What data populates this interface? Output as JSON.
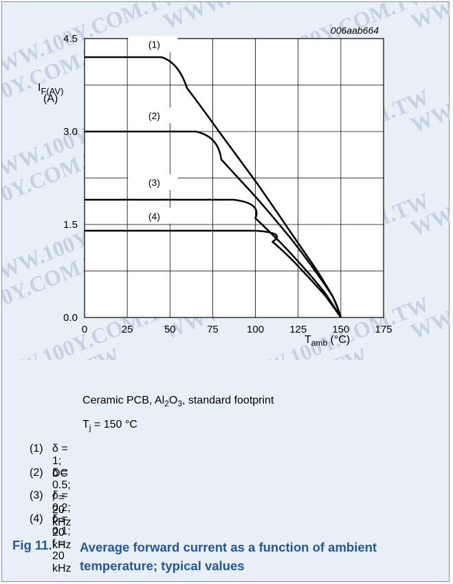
{
  "chart_data": {
    "type": "line",
    "diagram_id": "006aab664",
    "xlabel": "T",
    "xlabel_sub": "amb",
    "xlabel_unit": " (°C)",
    "ylabel_main": "I",
    "ylabel_sub": "F(AV)",
    "ylabel_unit": "(A)",
    "xlim": [
      0,
      175
    ],
    "ylim": [
      0,
      4.5
    ],
    "x_ticks": [
      0,
      25,
      50,
      75,
      100,
      125,
      150,
      175
    ],
    "x_tick_labels": [
      "0",
      "25",
      "50",
      "75",
      "100",
      "125",
      "150",
      "175"
    ],
    "y_ticks": [
      0,
      1.5,
      3.0,
      4.5
    ],
    "y_tick_labels": [
      "0.0",
      "1.5",
      "3.0",
      "4.5"
    ],
    "grid": true,
    "series": [
      {
        "name": "(1)",
        "x": [
          0,
          45,
          60,
          80,
          100,
          120,
          135,
          145,
          150
        ],
        "y": [
          4.2,
          4.2,
          3.7,
          2.95,
          2.2,
          1.4,
          0.8,
          0.35,
          0.0
        ]
      },
      {
        "name": "(2)",
        "x": [
          0,
          65,
          80,
          100,
          120,
          135,
          145,
          150
        ],
        "y": [
          3.0,
          3.0,
          2.55,
          1.95,
          1.3,
          0.75,
          0.35,
          0.0
        ]
      },
      {
        "name": "(3)",
        "x": [
          0,
          87,
          100,
          115,
          130,
          140,
          150
        ],
        "y": [
          1.9,
          1.9,
          1.6,
          1.2,
          0.75,
          0.42,
          0.0
        ]
      },
      {
        "name": "(4)",
        "x": [
          0,
          100,
          110,
          120,
          130,
          140,
          150
        ],
        "y": [
          1.4,
          1.4,
          1.22,
          0.97,
          0.68,
          0.38,
          0.0
        ]
      }
    ],
    "label_positions_x": [
      40,
      40,
      40,
      40
    ],
    "label_y_values": [
      4.35,
      3.2,
      2.12,
      1.58
    ]
  },
  "notes": {
    "substrate_pre": "Ceramic PCB, Al",
    "substrate_sub1": "2",
    "substrate_mid": "O",
    "substrate_sub2": "3",
    "substrate_post": ", standard footprint",
    "tj_pre": "T",
    "tj_sub": "j",
    "tj_post": " = 150 °C"
  },
  "conditions": [
    {
      "num": "(1)",
      "text": "δ = 1; DC"
    },
    {
      "num": "(2)",
      "text": "δ = 0.5; f = 20 kHz"
    },
    {
      "num": "(3)",
      "text": "δ = 0.2; f = 20 kHz"
    },
    {
      "num": "(4)",
      "text": "δ = 0.1; f = 20 kHz"
    }
  ],
  "figure": {
    "label": "Fig 11.",
    "caption": "Average forward current as a function of ambient temperature; typical values"
  },
  "watermark": {
    "text": "WWW.100Y.COM.TW",
    "color": "#c5d2e2"
  }
}
